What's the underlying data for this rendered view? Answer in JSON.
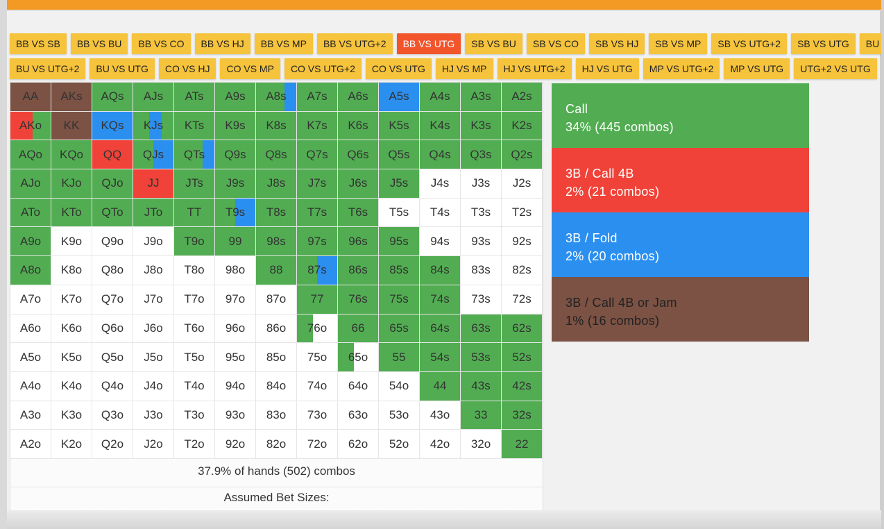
{
  "colors": {
    "call": "#52ad52",
    "raise_call": "#f04238",
    "raise_fold": "#2b8ff0",
    "raise_jam": "#7b5244",
    "fold": "#ffffff"
  },
  "tabs_row1": [
    "BB VS SB",
    "BB VS BU",
    "BB VS CO",
    "BB VS HJ",
    "BB VS MP",
    "BB VS UTG+2",
    "BB VS UTG",
    "SB VS BU",
    "SB VS CO",
    "SB VS HJ",
    "SB VS MP",
    "SB VS UTG+2",
    "SB VS UTG",
    "BU VS"
  ],
  "tabs_row2": [
    "BU VS UTG+2",
    "BU VS UTG",
    "CO VS HJ",
    "CO VS MP",
    "CO VS UTG+2",
    "CO VS UTG",
    "HJ VS MP",
    "HJ VS UTG+2",
    "HJ VS UTG",
    "MP VS UTG+2",
    "MP VS UTG",
    "UTG+2 VS UTG"
  ],
  "active_tab": "BB VS UTG",
  "grid": {
    "labels": [
      [
        "AA",
        "AKs",
        "AQs",
        "AJs",
        "ATs",
        "A9s",
        "A8s",
        "A7s",
        "A6s",
        "A5s",
        "A4s",
        "A3s",
        "A2s"
      ],
      [
        "AKo",
        "KK",
        "KQs",
        "KJs",
        "KTs",
        "K9s",
        "K8s",
        "K7s",
        "K6s",
        "K5s",
        "K4s",
        "K3s",
        "K2s"
      ],
      [
        "AQo",
        "KQo",
        "QQ",
        "QJs",
        "QTs",
        "Q9s",
        "Q8s",
        "Q7s",
        "Q6s",
        "Q5s",
        "Q4s",
        "Q3s",
        "Q2s"
      ],
      [
        "AJo",
        "KJo",
        "QJo",
        "JJ",
        "JTs",
        "J9s",
        "J8s",
        "J7s",
        "J6s",
        "J5s",
        "J4s",
        "J3s",
        "J2s"
      ],
      [
        "ATo",
        "KTo",
        "QTo",
        "JTo",
        "TT",
        "T9s",
        "T8s",
        "T7s",
        "T6s",
        "T5s",
        "T4s",
        "T3s",
        "T2s"
      ],
      [
        "A9o",
        "K9o",
        "Q9o",
        "J9o",
        "T9o",
        "99",
        "98s",
        "97s",
        "96s",
        "95s",
        "94s",
        "93s",
        "92s"
      ],
      [
        "A8o",
        "K8o",
        "Q8o",
        "J8o",
        "T8o",
        "98o",
        "88",
        "87s",
        "86s",
        "85s",
        "84s",
        "83s",
        "82s"
      ],
      [
        "A7o",
        "K7o",
        "Q7o",
        "J7o",
        "T7o",
        "97o",
        "87o",
        "77",
        "76s",
        "75s",
        "74s",
        "73s",
        "72s"
      ],
      [
        "A6o",
        "K6o",
        "Q6o",
        "J6o",
        "T6o",
        "96o",
        "86o",
        "76o",
        "66",
        "65s",
        "64s",
        "63s",
        "62s"
      ],
      [
        "A5o",
        "K5o",
        "Q5o",
        "J5o",
        "T5o",
        "95o",
        "85o",
        "75o",
        "65o",
        "55",
        "54s",
        "53s",
        "52s"
      ],
      [
        "A4o",
        "K4o",
        "Q4o",
        "J4o",
        "T4o",
        "94o",
        "84o",
        "74o",
        "64o",
        "54o",
        "44",
        "43s",
        "42s"
      ],
      [
        "A3o",
        "K3o",
        "Q3o",
        "J3o",
        "T3o",
        "93o",
        "83o",
        "73o",
        "63o",
        "53o",
        "43o",
        "33",
        "32s"
      ],
      [
        "A2o",
        "K2o",
        "Q2o",
        "J2o",
        "T2o",
        "92o",
        "82o",
        "72o",
        "62o",
        "52o",
        "42o",
        "32o",
        "22"
      ]
    ],
    "actions": [
      [
        "J",
        "J",
        "C",
        "C",
        "C",
        "C",
        "C:0.7|F:0.3",
        "C",
        "C",
        "F",
        "C",
        "C",
        "C"
      ],
      [
        "R:0.55|C:0.45",
        "J",
        "F",
        "C:0.4|F:0.3|C:0.3",
        "C",
        "C",
        "C",
        "C",
        "C",
        "C",
        "C",
        "C",
        "C"
      ],
      [
        "C",
        "C",
        "R",
        "C:0.5|F:0.5",
        "C:0.7|F:0.3",
        "C",
        "C",
        "C",
        "C",
        "C",
        "C",
        "C",
        "C"
      ],
      [
        "C",
        "C",
        "C",
        "R",
        "C",
        "C",
        "C",
        "C",
        "C",
        "C",
        "N",
        "N",
        "N"
      ],
      [
        "C",
        "C",
        "C",
        "C",
        "C",
        "C:0.5|F:0.5",
        "C",
        "C",
        "C",
        "N",
        "N",
        "N",
        "N"
      ],
      [
        "C",
        "N",
        "N",
        "N",
        "C",
        "C",
        "C",
        "C",
        "C",
        "C",
        "N",
        "N",
        "N"
      ],
      [
        "C",
        "N",
        "N",
        "N",
        "N",
        "N",
        "C",
        "C:0.5|F:0.5",
        "C",
        "C",
        "C",
        "N",
        "N"
      ],
      [
        "N",
        "N",
        "N",
        "N",
        "N",
        "N",
        "N",
        "C",
        "C",
        "C",
        "C",
        "N",
        "N"
      ],
      [
        "N",
        "N",
        "N",
        "N",
        "N",
        "N",
        "N",
        "C:0.4|N:0.6",
        "C",
        "C",
        "C",
        "C",
        "C"
      ],
      [
        "N",
        "N",
        "N",
        "N",
        "N",
        "N",
        "N",
        "N",
        "C:0.4|N:0.6",
        "C",
        "C",
        "C",
        "C"
      ],
      [
        "N",
        "N",
        "N",
        "N",
        "N",
        "N",
        "N",
        "N",
        "N",
        "N",
        "C",
        "C",
        "C"
      ],
      [
        "N",
        "N",
        "N",
        "N",
        "N",
        "N",
        "N",
        "N",
        "N",
        "N",
        "N",
        "C",
        "C"
      ],
      [
        "N",
        "N",
        "N",
        "N",
        "N",
        "N",
        "N",
        "N",
        "N",
        "N",
        "N",
        "N",
        "C"
      ]
    ]
  },
  "summary": "37.9% of hands (502) combos",
  "bet_sizes_label": "Assumed Bet Sizes:",
  "legend": [
    {
      "title": "Call",
      "detail": "34% (445 combos)"
    },
    {
      "title": "3B / Call 4B",
      "detail": "2% (21 combos)"
    },
    {
      "title": "3B / Fold",
      "detail": "2% (20 combos)"
    },
    {
      "title": "3B / Call 4B or Jam",
      "detail": "1% (16 combos)"
    }
  ]
}
